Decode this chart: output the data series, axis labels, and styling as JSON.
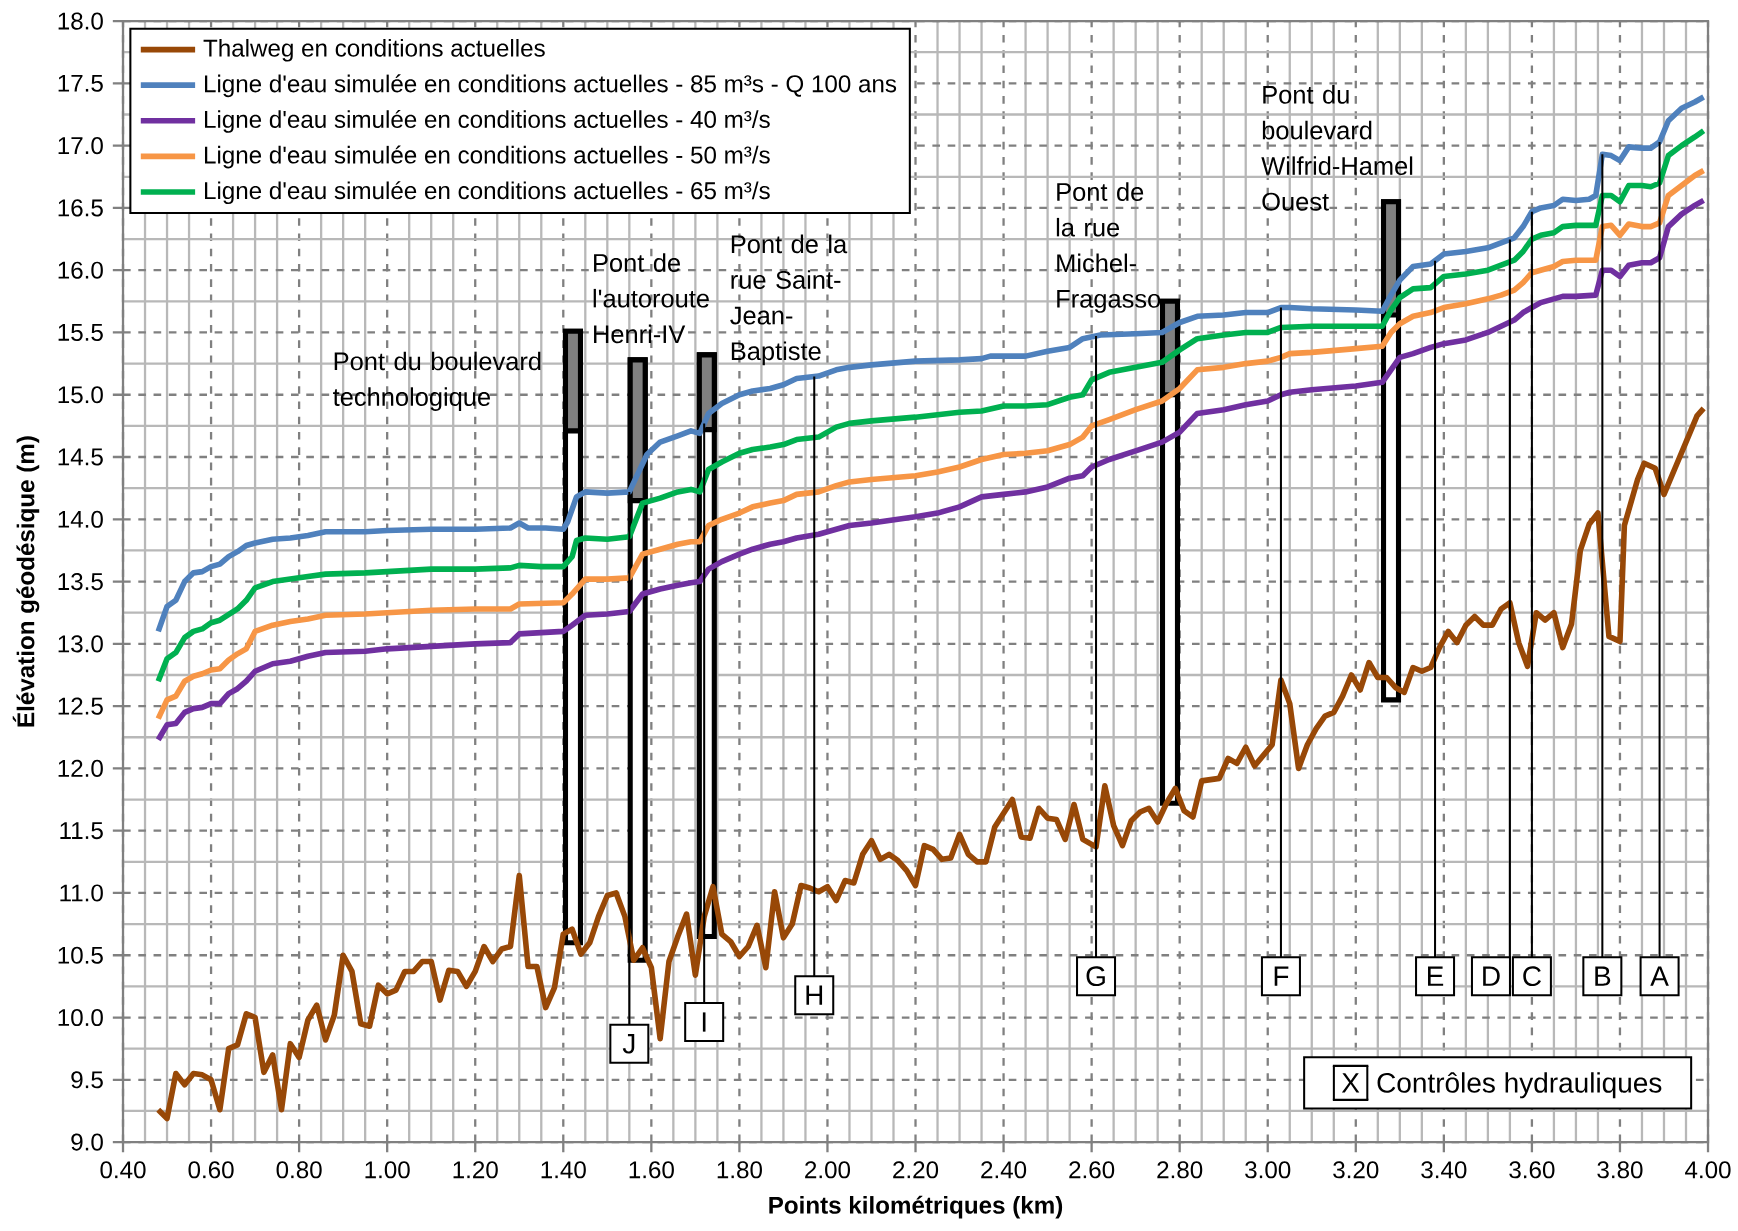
{
  "chart_data": {
    "type": "line",
    "xlabel": "Points kilométriques (km)",
    "ylabel": "Élévation géodésique (m)",
    "xlim": [
      0.4,
      4.0
    ],
    "ylim": [
      9.0,
      18.0
    ],
    "xticks": [
      {
        "value": 0.4,
        "label": "0.40"
      },
      {
        "value": 0.6,
        "label": "0.60"
      },
      {
        "value": 0.8,
        "label": "0.80"
      },
      {
        "value": 1.0,
        "label": "1.00"
      },
      {
        "value": 1.2,
        "label": "1.20"
      },
      {
        "value": 1.4,
        "label": "1.40"
      },
      {
        "value": 1.6,
        "label": "1.60"
      },
      {
        "value": 1.8,
        "label": "1.80"
      },
      {
        "value": 2.0,
        "label": "2.00"
      },
      {
        "value": 2.2,
        "label": "2.20"
      },
      {
        "value": 2.4,
        "label": "2.40"
      },
      {
        "value": 2.6,
        "label": "2.60"
      },
      {
        "value": 2.8,
        "label": "2.80"
      },
      {
        "value": 3.0,
        "label": "3.00"
      },
      {
        "value": 3.2,
        "label": "3.20"
      },
      {
        "value": 3.4,
        "label": "3.40"
      },
      {
        "value": 3.6,
        "label": "3.60"
      },
      {
        "value": 3.8,
        "label": "3.80"
      },
      {
        "value": 4.0,
        "label": "4.00"
      }
    ],
    "yticks": [
      {
        "value": 9.0,
        "label": "9.0"
      },
      {
        "value": 9.5,
        "label": "9.5"
      },
      {
        "value": 10.0,
        "label": "10.0"
      },
      {
        "value": 10.5,
        "label": "10.5"
      },
      {
        "value": 11.0,
        "label": "11.0"
      },
      {
        "value": 11.5,
        "label": "11.5"
      },
      {
        "value": 12.0,
        "label": "12.0"
      },
      {
        "value": 12.5,
        "label": "12.5"
      },
      {
        "value": 13.0,
        "label": "13.0"
      },
      {
        "value": 13.5,
        "label": "13.5"
      },
      {
        "value": 14.0,
        "label": "14.0"
      },
      {
        "value": 14.5,
        "label": "14.5"
      },
      {
        "value": 15.0,
        "label": "15.0"
      },
      {
        "value": 15.5,
        "label": "15.5"
      },
      {
        "value": 16.0,
        "label": "16.0"
      },
      {
        "value": 16.5,
        "label": "16.5"
      },
      {
        "value": 17.0,
        "label": "17.0"
      },
      {
        "value": 17.5,
        "label": "17.5"
      },
      {
        "value": 18.0,
        "label": "18.0"
      }
    ],
    "grid": true,
    "legend": "top left",
    "series": [
      {
        "name": "Thalweg en conditions actuelles",
        "color": "#984807",
        "x": [
          0.48,
          0.5,
          0.52,
          0.54,
          0.56,
          0.58,
          0.6,
          0.62,
          0.64,
          0.66,
          0.68,
          0.7,
          0.72,
          0.74,
          0.76,
          0.78,
          0.8,
          0.82,
          0.84,
          0.86,
          0.88,
          0.9,
          0.92,
          0.94,
          0.96,
          0.98,
          1.0,
          1.02,
          1.04,
          1.06,
          1.08,
          1.1,
          1.12,
          1.14,
          1.16,
          1.18,
          1.2,
          1.22,
          1.24,
          1.26,
          1.28,
          1.3,
          1.32,
          1.34,
          1.36,
          1.38,
          1.4,
          1.42,
          1.44,
          1.46,
          1.48,
          1.5,
          1.52,
          1.54,
          1.56,
          1.58,
          1.6,
          1.62,
          1.64,
          1.66,
          1.68,
          1.7,
          1.72,
          1.74,
          1.76,
          1.78,
          1.8,
          1.82,
          1.84,
          1.86,
          1.88,
          1.9,
          1.92,
          1.94,
          1.96,
          1.98,
          2.0,
          2.02,
          2.04,
          2.06,
          2.08,
          2.1,
          2.12,
          2.14,
          2.16,
          2.18,
          2.2,
          2.22,
          2.24,
          2.26,
          2.28,
          2.3,
          2.32,
          2.34,
          2.36,
          2.38,
          2.42,
          2.44,
          2.46,
          2.48,
          2.5,
          2.52,
          2.54,
          2.56,
          2.58,
          2.61,
          2.63,
          2.65,
          2.67,
          2.69,
          2.71,
          2.73,
          2.75,
          2.77,
          2.79,
          2.81,
          2.83,
          2.85,
          2.89,
          2.91,
          2.93,
          2.95,
          2.97,
          3.01,
          3.03,
          3.05,
          3.07,
          3.09,
          3.11,
          3.13,
          3.15,
          3.17,
          3.19,
          3.21,
          3.23,
          3.25,
          3.27,
          3.29,
          3.31,
          3.33,
          3.35,
          3.37,
          3.39,
          3.41,
          3.43,
          3.45,
          3.47,
          3.49,
          3.51,
          3.53,
          3.55,
          3.57,
          3.59,
          3.61,
          3.63,
          3.65,
          3.67,
          3.69,
          3.71,
          3.73,
          3.75,
          3.775,
          3.8,
          3.81,
          3.84,
          3.855,
          3.88,
          3.9,
          3.925,
          3.95,
          3.975,
          3.99
        ],
        "values": [
          9.26,
          9.19,
          9.55,
          9.46,
          9.55,
          9.54,
          9.5,
          9.26,
          9.75,
          9.78,
          10.03,
          10.0,
          9.56,
          9.7,
          9.26,
          9.79,
          9.68,
          9.98,
          10.1,
          9.82,
          10.02,
          10.5,
          10.37,
          9.95,
          9.93,
          10.26,
          10.19,
          10.22,
          10.37,
          10.37,
          10.45,
          10.45,
          10.14,
          10.38,
          10.37,
          10.25,
          10.37,
          10.57,
          10.45,
          10.55,
          10.57,
          11.14,
          10.41,
          10.41,
          10.08,
          10.24,
          10.67,
          10.71,
          10.51,
          10.6,
          10.81,
          10.98,
          11.0,
          10.81,
          10.46,
          10.56,
          10.4,
          9.83,
          10.45,
          10.65,
          10.83,
          10.34,
          10.81,
          11.05,
          10.67,
          10.61,
          10.49,
          10.57,
          10.74,
          10.4,
          11.01,
          10.64,
          10.75,
          11.06,
          11.04,
          11.01,
          11.05,
          10.94,
          11.1,
          11.08,
          11.31,
          11.42,
          11.27,
          11.31,
          11.26,
          11.18,
          11.06,
          11.38,
          11.35,
          11.27,
          11.28,
          11.47,
          11.31,
          11.25,
          11.25,
          11.53,
          11.75,
          11.45,
          11.44,
          11.68,
          11.6,
          11.59,
          11.43,
          11.71,
          11.43,
          11.37,
          11.86,
          11.54,
          11.38,
          11.58,
          11.65,
          11.68,
          11.57,
          11.72,
          11.84,
          11.66,
          11.61,
          11.9,
          11.92,
          12.08,
          12.04,
          12.17,
          12.02,
          12.19,
          12.71,
          12.52,
          12.0,
          12.19,
          12.32,
          12.42,
          12.45,
          12.58,
          12.75,
          12.63,
          12.85,
          12.73,
          12.73,
          12.65,
          12.61,
          12.81,
          12.78,
          12.81,
          12.97,
          13.1,
          13.01,
          13.15,
          13.22,
          13.15,
          13.15,
          13.28,
          13.33,
          13.01,
          12.82,
          13.25,
          13.19,
          13.25,
          12.97,
          13.16,
          13.75,
          13.96,
          14.05,
          13.06,
          13.02,
          13.95,
          14.32,
          14.45,
          14.41,
          14.2,
          14.41,
          14.62,
          14.83,
          14.89
        ]
      },
      {
        "name": "Ligne d'eau simulée en conditions actuelles - 85 m³s - Q 100 ans",
        "color": "#4f81bd",
        "x": [
          0.48,
          0.5,
          0.52,
          0.54,
          0.56,
          0.58,
          0.6,
          0.62,
          0.64,
          0.66,
          0.68,
          0.7,
          0.74,
          0.78,
          0.82,
          0.86,
          0.9,
          0.95,
          1.0,
          1.1,
          1.2,
          1.28,
          1.3,
          1.32,
          1.36,
          1.4,
          1.41,
          1.43,
          1.45,
          1.5,
          1.55,
          1.59,
          1.62,
          1.66,
          1.69,
          1.71,
          1.73,
          1.76,
          1.8,
          1.83,
          1.87,
          1.9,
          1.93,
          1.98,
          2.02,
          2.05,
          2.1,
          2.2,
          2.3,
          2.35,
          2.37,
          2.45,
          2.5,
          2.55,
          2.58,
          2.62,
          2.7,
          2.76,
          2.8,
          2.84,
          2.9,
          2.95,
          3.0,
          3.03,
          3.05,
          3.1,
          3.2,
          3.26,
          3.28,
          3.3,
          3.33,
          3.37,
          3.4,
          3.45,
          3.5,
          3.53,
          3.56,
          3.58,
          3.6,
          3.62,
          3.65,
          3.67,
          3.7,
          3.73,
          3.745,
          3.76,
          3.78,
          3.8,
          3.82,
          3.85,
          3.87,
          3.89,
          3.91,
          3.94,
          3.97,
          3.99
        ],
        "values": [
          13.1,
          13.3,
          13.35,
          13.5,
          13.57,
          13.58,
          13.62,
          13.64,
          13.7,
          13.74,
          13.79,
          13.81,
          13.84,
          13.85,
          13.87,
          13.9,
          13.9,
          13.9,
          13.91,
          13.92,
          13.92,
          13.93,
          13.97,
          13.93,
          13.93,
          13.92,
          13.98,
          14.18,
          14.22,
          14.21,
          14.22,
          14.52,
          14.62,
          14.67,
          14.71,
          14.69,
          14.85,
          14.93,
          15.0,
          15.03,
          15.05,
          15.08,
          15.13,
          15.15,
          15.2,
          15.22,
          15.24,
          15.27,
          15.28,
          15.29,
          15.31,
          15.31,
          15.35,
          15.38,
          15.45,
          15.48,
          15.49,
          15.5,
          15.58,
          15.63,
          15.64,
          15.66,
          15.66,
          15.7,
          15.7,
          15.69,
          15.68,
          15.67,
          15.8,
          15.92,
          16.03,
          16.05,
          16.13,
          16.15,
          16.18,
          16.22,
          16.26,
          16.35,
          16.47,
          16.5,
          16.52,
          16.57,
          16.56,
          16.57,
          16.6,
          16.93,
          16.92,
          16.88,
          16.99,
          16.98,
          16.98,
          17.03,
          17.2,
          17.3,
          17.35,
          17.39
        ]
      },
      {
        "name": "Ligne d'eau simulée en conditions actuelles - 40 m³/s",
        "color": "#7030a0",
        "x": [
          0.48,
          0.5,
          0.52,
          0.54,
          0.56,
          0.58,
          0.6,
          0.62,
          0.64,
          0.66,
          0.68,
          0.7,
          0.74,
          0.78,
          0.82,
          0.86,
          0.95,
          1.0,
          1.1,
          1.2,
          1.28,
          1.3,
          1.4,
          1.42,
          1.45,
          1.5,
          1.55,
          1.58,
          1.62,
          1.66,
          1.69,
          1.71,
          1.73,
          1.76,
          1.8,
          1.83,
          1.87,
          1.9,
          1.93,
          1.98,
          2.02,
          2.05,
          2.1,
          2.2,
          2.25,
          2.3,
          2.35,
          2.4,
          2.45,
          2.5,
          2.55,
          2.58,
          2.6,
          2.64,
          2.7,
          2.76,
          2.8,
          2.84,
          2.9,
          2.95,
          3.0,
          3.03,
          3.05,
          3.1,
          3.2,
          3.26,
          3.28,
          3.3,
          3.33,
          3.37,
          3.4,
          3.45,
          3.5,
          3.53,
          3.56,
          3.58,
          3.6,
          3.62,
          3.65,
          3.67,
          3.7,
          3.745,
          3.76,
          3.78,
          3.8,
          3.82,
          3.85,
          3.87,
          3.89,
          3.91,
          3.94,
          3.97,
          3.99
        ],
        "values": [
          12.23,
          12.35,
          12.36,
          12.45,
          12.48,
          12.49,
          12.52,
          12.52,
          12.6,
          12.64,
          12.7,
          12.78,
          12.84,
          12.86,
          12.9,
          12.93,
          12.94,
          12.96,
          12.98,
          13.0,
          13.01,
          13.08,
          13.1,
          13.15,
          13.23,
          13.24,
          13.26,
          13.4,
          13.44,
          13.47,
          13.49,
          13.5,
          13.6,
          13.66,
          13.72,
          13.76,
          13.8,
          13.82,
          13.85,
          13.88,
          13.92,
          13.95,
          13.97,
          14.02,
          14.05,
          14.1,
          14.18,
          14.2,
          14.22,
          14.26,
          14.33,
          14.35,
          14.42,
          14.48,
          14.55,
          14.62,
          14.7,
          14.85,
          14.88,
          14.92,
          14.95,
          15.0,
          15.02,
          15.04,
          15.07,
          15.1,
          15.2,
          15.3,
          15.33,
          15.38,
          15.41,
          15.44,
          15.5,
          15.55,
          15.6,
          15.66,
          15.7,
          15.74,
          15.77,
          15.79,
          15.79,
          15.8,
          16.0,
          16.0,
          15.95,
          16.04,
          16.06,
          16.06,
          16.1,
          16.35,
          16.45,
          16.52,
          16.56
        ]
      },
      {
        "name": "Ligne d'eau simulée en conditions actuelles - 50 m³/s",
        "color": "#f79646",
        "x": [
          0.48,
          0.5,
          0.52,
          0.54,
          0.56,
          0.58,
          0.6,
          0.62,
          0.64,
          0.66,
          0.68,
          0.7,
          0.74,
          0.78,
          0.82,
          0.86,
          0.95,
          1.0,
          1.1,
          1.2,
          1.28,
          1.3,
          1.4,
          1.42,
          1.45,
          1.5,
          1.55,
          1.58,
          1.62,
          1.66,
          1.69,
          1.71,
          1.73,
          1.76,
          1.8,
          1.83,
          1.87,
          1.9,
          1.93,
          1.98,
          2.02,
          2.05,
          2.1,
          2.2,
          2.25,
          2.3,
          2.35,
          2.4,
          2.45,
          2.5,
          2.55,
          2.58,
          2.6,
          2.64,
          2.7,
          2.76,
          2.8,
          2.84,
          2.9,
          2.95,
          3.0,
          3.03,
          3.05,
          3.1,
          3.2,
          3.26,
          3.28,
          3.3,
          3.33,
          3.37,
          3.4,
          3.45,
          3.5,
          3.53,
          3.56,
          3.58,
          3.6,
          3.62,
          3.65,
          3.67,
          3.7,
          3.745,
          3.76,
          3.78,
          3.8,
          3.82,
          3.85,
          3.87,
          3.89,
          3.91,
          3.94,
          3.97,
          3.99
        ],
        "values": [
          12.4,
          12.55,
          12.58,
          12.7,
          12.74,
          12.76,
          12.79,
          12.8,
          12.87,
          12.92,
          12.96,
          13.1,
          13.15,
          13.18,
          13.2,
          13.23,
          13.24,
          13.25,
          13.27,
          13.28,
          13.28,
          13.32,
          13.33,
          13.4,
          13.52,
          13.52,
          13.53,
          13.72,
          13.76,
          13.8,
          13.82,
          13.82,
          13.95,
          14.0,
          14.05,
          14.1,
          14.13,
          14.15,
          14.2,
          14.22,
          14.27,
          14.3,
          14.32,
          14.35,
          14.38,
          14.42,
          14.48,
          14.52,
          14.53,
          14.55,
          14.6,
          14.66,
          14.75,
          14.8,
          14.88,
          14.95,
          15.05,
          15.2,
          15.22,
          15.25,
          15.27,
          15.3,
          15.33,
          15.34,
          15.37,
          15.39,
          15.5,
          15.57,
          15.63,
          15.66,
          15.7,
          15.73,
          15.77,
          15.8,
          15.84,
          15.9,
          15.98,
          16.0,
          16.03,
          16.07,
          16.08,
          16.08,
          16.35,
          16.36,
          16.28,
          16.37,
          16.35,
          16.35,
          16.38,
          16.6,
          16.68,
          16.76,
          16.8
        ]
      },
      {
        "name": "Ligne d'eau simulée en conditions actuelles - 65 m³/s",
        "color": "#00b050",
        "x": [
          0.48,
          0.5,
          0.52,
          0.54,
          0.56,
          0.58,
          0.6,
          0.62,
          0.66,
          0.68,
          0.7,
          0.74,
          0.78,
          0.82,
          0.86,
          0.95,
          1.0,
          1.1,
          1.2,
          1.28,
          1.3,
          1.35,
          1.4,
          1.42,
          1.43,
          1.45,
          1.5,
          1.55,
          1.58,
          1.62,
          1.66,
          1.69,
          1.71,
          1.73,
          1.76,
          1.8,
          1.83,
          1.87,
          1.9,
          1.93,
          1.98,
          2.02,
          2.05,
          2.1,
          2.2,
          2.3,
          2.35,
          2.4,
          2.45,
          2.5,
          2.55,
          2.58,
          2.6,
          2.64,
          2.7,
          2.76,
          2.8,
          2.84,
          2.9,
          2.95,
          3.0,
          3.03,
          3.1,
          3.2,
          3.26,
          3.28,
          3.3,
          3.33,
          3.37,
          3.4,
          3.45,
          3.5,
          3.53,
          3.56,
          3.58,
          3.6,
          3.62,
          3.65,
          3.67,
          3.7,
          3.745,
          3.76,
          3.78,
          3.8,
          3.82,
          3.85,
          3.87,
          3.89,
          3.91,
          3.94,
          3.97,
          3.99
        ],
        "values": [
          12.7,
          12.88,
          12.93,
          13.05,
          13.1,
          13.12,
          13.17,
          13.19,
          13.28,
          13.35,
          13.45,
          13.5,
          13.52,
          13.54,
          13.56,
          13.57,
          13.58,
          13.6,
          13.6,
          13.61,
          13.63,
          13.62,
          13.62,
          13.7,
          13.83,
          13.85,
          13.84,
          13.86,
          14.13,
          14.17,
          14.22,
          14.24,
          14.22,
          14.4,
          14.46,
          14.53,
          14.56,
          14.58,
          14.6,
          14.64,
          14.66,
          14.74,
          14.77,
          14.79,
          14.82,
          14.86,
          14.87,
          14.91,
          14.91,
          14.92,
          14.98,
          15.0,
          15.12,
          15.18,
          15.22,
          15.26,
          15.36,
          15.45,
          15.48,
          15.5,
          15.5,
          15.54,
          15.55,
          15.55,
          15.55,
          15.68,
          15.78,
          15.85,
          15.86,
          15.95,
          15.97,
          16.0,
          16.04,
          16.08,
          16.15,
          16.25,
          16.28,
          16.3,
          16.35,
          16.36,
          16.36,
          16.6,
          16.6,
          16.55,
          16.68,
          16.68,
          16.67,
          16.7,
          16.92,
          17.0,
          17.07,
          17.12
        ]
      },
      {
        "type": "bar",
        "color": "#ffffff",
        "x": [
          1.422,
          1.569,
          1.726,
          2.778,
          3.28
        ],
        "base": [
          10.6,
          10.46,
          10.65,
          11.72,
          12.55
        ],
        "values": [
          4.91,
          4.82,
          4.67,
          4.03,
          4.0
        ]
      },
      {
        "type": "bar",
        "color": "#808080",
        "x": [
          1.422,
          1.569,
          1.726,
          2.778,
          3.28
        ],
        "base": [
          14.71,
          14.15,
          14.72,
          15.0,
          15.64
        ],
        "values": [
          0.8,
          1.13,
          0.6,
          0.75,
          0.91
        ]
      }
    ],
    "ref_lines": [
      {
        "axis": "x",
        "value": 3.89,
        "label": "A"
      },
      {
        "axis": "x",
        "value": 3.76,
        "label": "B"
      },
      {
        "axis": "x",
        "value": 3.6,
        "label": "C"
      },
      {
        "axis": "x",
        "value": 3.55,
        "label": "D"
      },
      {
        "axis": "x",
        "value": 3.38,
        "label": "E"
      },
      {
        "axis": "x",
        "value": 3.03,
        "label": "F"
      },
      {
        "axis": "x",
        "value": 2.61,
        "label": "G"
      },
      {
        "axis": "x",
        "value": 1.97,
        "label": "H"
      },
      {
        "axis": "x",
        "value": 1.72,
        "label": "I"
      },
      {
        "axis": "x",
        "value": 1.55,
        "label": "J"
      }
    ],
    "annotations": [
      {
        "text": "Pont du boulevard technologique",
        "x": 1.422,
        "y": 15.51
      },
      {
        "text": "Pont de l'autoroute Henri-IV",
        "x": 1.569,
        "y": 15.28
      },
      {
        "text": "Pont de la rue Saint-Jean-Baptiste",
        "x": 1.726,
        "y": 15.32
      },
      {
        "text": "Pont de la rue Michel-Fragasso",
        "x": 2.778,
        "y": 15.75
      },
      {
        "text": "Pont du boulevard Wilfrid-Hamel Ouest",
        "x": 3.28,
        "y": 16.55
      },
      "X",
      "Contrôles hydrauliques"
    ]
  }
}
